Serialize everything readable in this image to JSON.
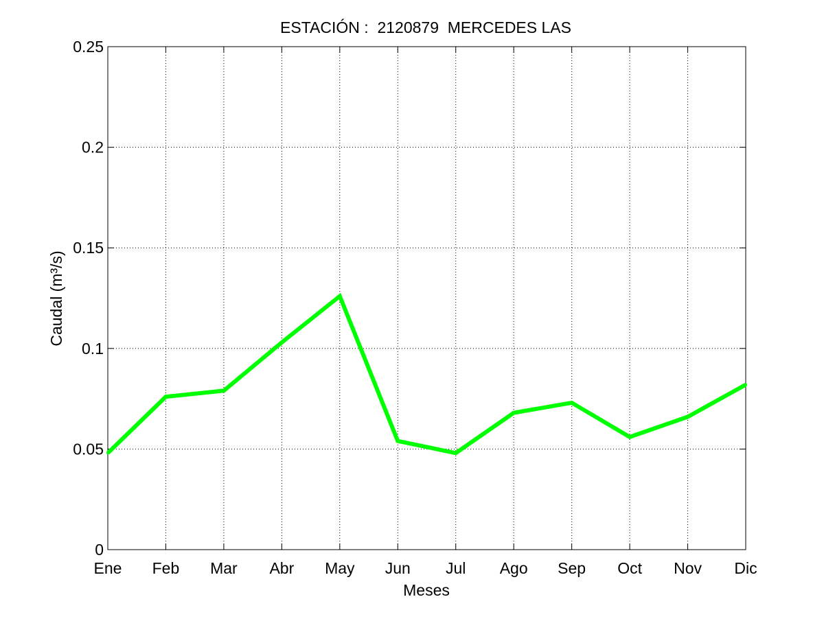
{
  "chart_data": {
    "type": "line",
    "title": "ESTACIÓN :  2120879  MERCEDES LAS",
    "xlabel": "Meses",
    "ylabel": "Caudal (m³/s)",
    "categories": [
      "Ene",
      "Feb",
      "Mar",
      "Abr",
      "May",
      "Jun",
      "Jul",
      "Ago",
      "Sep",
      "Oct",
      "Nov",
      "Dic"
    ],
    "series": [
      {
        "values": [
          0.048,
          0.076,
          0.079,
          0.103,
          0.126,
          0.054,
          0.048,
          0.068,
          0.073,
          0.056,
          0.066,
          0.082
        ],
        "color": "#00ff00"
      }
    ],
    "ylim": [
      0,
      0.25
    ],
    "yticks": [
      0,
      0.05,
      0.1,
      0.15,
      0.2,
      0.25
    ],
    "ytick_labels": [
      "0",
      "0.05",
      "0.1",
      "0.15",
      "0.2",
      "0.25"
    ],
    "grid": true,
    "grid_style": "dotted"
  }
}
